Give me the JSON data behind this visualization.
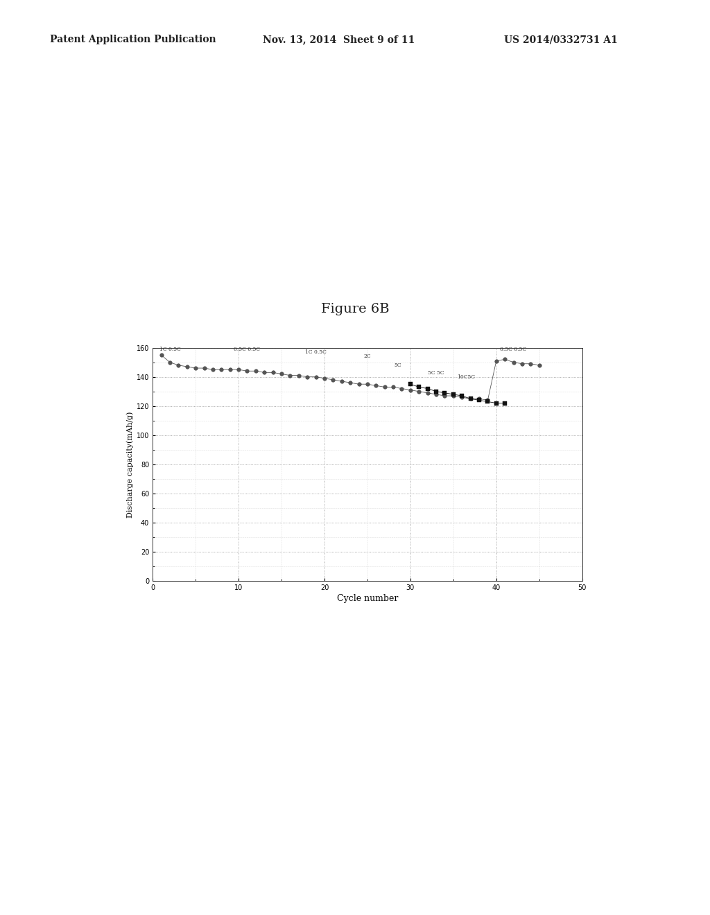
{
  "title": "Figure 6B",
  "xlabel": "Cycle number",
  "ylabel": "Discharge capacity(mAh/g)",
  "xlim": [
    0,
    50
  ],
  "ylim": [
    0,
    160
  ],
  "xticks": [
    0,
    10,
    20,
    30,
    40,
    50
  ],
  "yticks": [
    0,
    20,
    40,
    60,
    80,
    100,
    120,
    140,
    160
  ],
  "background_color": "#ffffff",
  "header_left": "Patent Application Publication",
  "header_mid": "Nov. 13, 2014  Sheet 9 of 11",
  "header_right": "US 2014/0332731 A1",
  "series1_x": [
    1,
    2,
    3,
    4,
    5,
    6,
    7,
    8,
    9,
    10,
    11,
    12,
    13,
    14,
    15,
    16,
    17,
    18,
    19,
    20,
    21,
    22,
    23,
    24,
    25,
    26,
    27,
    28,
    29,
    30,
    31,
    32,
    33,
    34,
    35,
    36,
    37,
    38,
    39,
    40,
    41,
    42,
    43,
    44,
    45
  ],
  "series1_y": [
    155,
    150,
    148,
    147,
    146,
    146,
    145,
    145,
    145,
    145,
    144,
    144,
    143,
    143,
    142,
    141,
    141,
    140,
    140,
    139,
    138,
    137,
    136,
    135,
    135,
    134,
    133,
    133,
    132,
    131,
    130,
    129,
    128,
    127,
    127,
    126,
    125,
    125,
    124,
    151,
    152,
    150,
    149,
    149,
    148
  ],
  "series2_x": [
    30,
    31,
    32,
    33,
    34,
    35,
    36,
    37,
    38,
    39,
    40,
    41
  ],
  "series2_y": [
    135,
    133,
    132,
    130,
    129,
    128,
    127,
    125,
    124,
    123,
    122,
    122
  ],
  "series1_color": "#404040",
  "series2_color": "#101010",
  "marker_size": 4,
  "annotation_data": [
    [
      2,
      157,
      "1C 0.5C"
    ],
    [
      11,
      157,
      "0.5C 0.5C"
    ],
    [
      19,
      155,
      "1C 0.5C"
    ],
    [
      25,
      152,
      "2C"
    ],
    [
      28.5,
      146,
      "5C"
    ],
    [
      33,
      141,
      "5C 5C"
    ],
    [
      36.5,
      138,
      "10C5C"
    ],
    [
      42,
      157,
      "0.5C 0.5C"
    ]
  ]
}
